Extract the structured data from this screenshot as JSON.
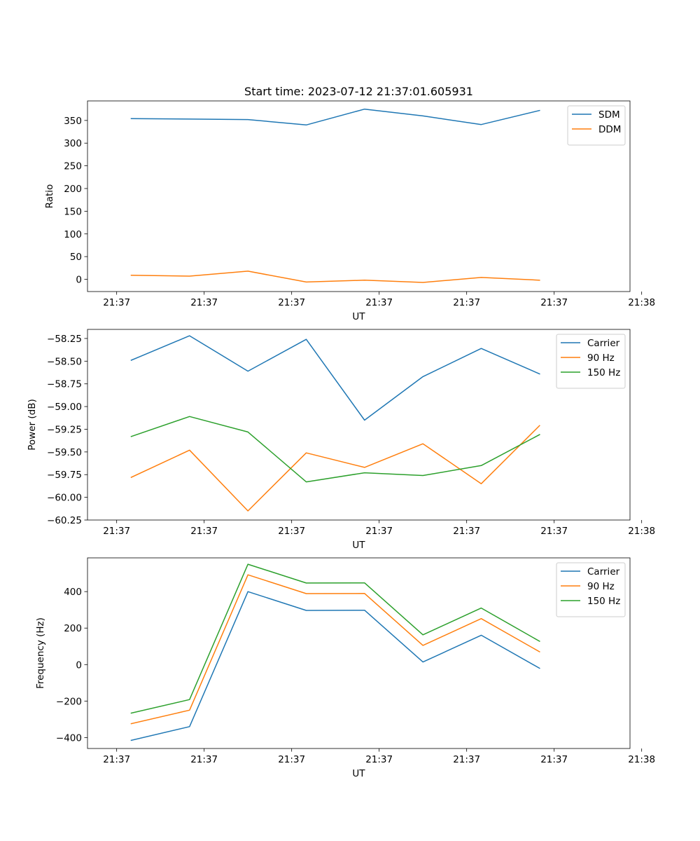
{
  "chart_data": [
    {
      "type": "line",
      "title": "Start time: 2023-07-12 21:37:01.605931",
      "xlabel": "UT",
      "ylabel": "Ratio",
      "xlim": [
        -0.5,
        8.8
      ],
      "x": [
        0.25,
        1.25,
        2.25,
        3.25,
        4.25,
        5.25,
        6.25,
        7.25
      ],
      "x_tick_values": [
        0,
        1.5,
        3,
        4.5,
        6,
        7.5,
        9
      ],
      "x_tick_labels": [
        "21:37",
        "21:37",
        "21:37",
        "21:37",
        "21:37",
        "21:37",
        "21:38"
      ],
      "ylim": [
        -27,
        393
      ],
      "y_ticks": [
        0,
        50,
        100,
        150,
        200,
        250,
        300,
        350
      ],
      "legend_position": "upper right",
      "series": [
        {
          "name": "SDM",
          "color": "#1f77b4",
          "values": [
            354,
            353,
            352,
            340,
            375,
            360,
            341,
            372
          ]
        },
        {
          "name": "DDM",
          "color": "#ff7f0e",
          "values": [
            9,
            7,
            18,
            -6,
            -2,
            -7,
            4,
            -2
          ]
        }
      ]
    },
    {
      "type": "line",
      "title": "",
      "xlabel": "UT",
      "ylabel": "Power (dB)",
      "xlim": [
        -0.5,
        8.8
      ],
      "x": [
        0.25,
        1.25,
        2.25,
        3.25,
        4.25,
        5.25,
        6.25,
        7.25
      ],
      "x_tick_values": [
        0,
        1.5,
        3,
        4.5,
        6,
        7.5,
        9
      ],
      "x_tick_labels": [
        "21:37",
        "21:37",
        "21:37",
        "21:37",
        "21:37",
        "21:37",
        "21:38"
      ],
      "ylim": [
        -60.25,
        -58.15
      ],
      "y_ticks": [
        -60.25,
        -60.0,
        -59.75,
        -59.5,
        -59.25,
        -59.0,
        -58.75,
        -58.5,
        -58.25
      ],
      "y_tick_labels": [
        "−60.25",
        "−60.00",
        "−59.75",
        "−59.50",
        "−59.25",
        "−59.00",
        "−58.75",
        "−58.50",
        "−58.25"
      ],
      "legend_position": "upper right",
      "series": [
        {
          "name": "Carrier",
          "color": "#1f77b4",
          "values": [
            -58.49,
            -58.22,
            -58.61,
            -58.26,
            -59.15,
            -58.67,
            -58.36,
            -58.64
          ]
        },
        {
          "name": "90 Hz",
          "color": "#ff7f0e",
          "values": [
            -59.78,
            -59.48,
            -60.15,
            -59.51,
            -59.67,
            -59.41,
            -59.85,
            -59.21
          ]
        },
        {
          "name": "150 Hz",
          "color": "#2ca02c",
          "values": [
            -59.33,
            -59.11,
            -59.28,
            -59.83,
            -59.73,
            -59.76,
            -59.65,
            -59.31
          ]
        }
      ]
    },
    {
      "type": "line",
      "title": "",
      "xlabel": "UT",
      "ylabel": "Frequency (Hz)",
      "xlim": [
        -0.5,
        8.8
      ],
      "x": [
        0.25,
        1.25,
        2.25,
        3.25,
        4.25,
        5.25,
        6.25,
        7.25
      ],
      "x_tick_values": [
        0,
        1.5,
        3,
        4.5,
        6,
        7.5,
        9
      ],
      "x_tick_labels": [
        "21:37",
        "21:37",
        "21:37",
        "21:37",
        "21:37",
        "21:37",
        "21:38"
      ],
      "ylim": [
        -460,
        585
      ],
      "y_ticks": [
        -400,
        -200,
        0,
        200,
        400
      ],
      "y_tick_labels": [
        "−400",
        "−200",
        "0",
        "200",
        "400"
      ],
      "legend_position": "upper right",
      "series": [
        {
          "name": "Carrier",
          "color": "#1f77b4",
          "values": [
            -415,
            -340,
            400,
            297,
            298,
            14,
            161,
            -20
          ]
        },
        {
          "name": "90 Hz",
          "color": "#ff7f0e",
          "values": [
            -324,
            -250,
            492,
            389,
            390,
            105,
            252,
            70
          ]
        },
        {
          "name": "150 Hz",
          "color": "#2ca02c",
          "values": [
            -266,
            -192,
            550,
            447,
            448,
            163,
            310,
            128
          ]
        }
      ]
    }
  ]
}
